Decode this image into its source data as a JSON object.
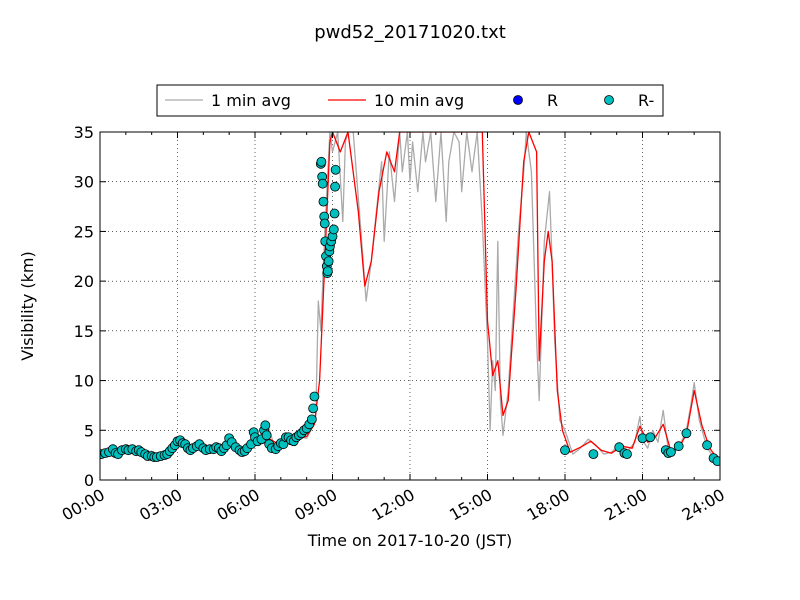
{
  "chart_data": {
    "type": "line",
    "title": "pwd52_20171020.txt",
    "xlabel": "Time on 2017-10-20 (JST)",
    "ylabel": "Visibility (km)",
    "xlim": [
      0,
      24
    ],
    "ylim": [
      0,
      35
    ],
    "x_ticks": [
      {
        "value": 0,
        "label": "00:00"
      },
      {
        "value": 3,
        "label": "03:00"
      },
      {
        "value": 6,
        "label": "06:00"
      },
      {
        "value": 9,
        "label": "09:00"
      },
      {
        "value": 12,
        "label": "12:00"
      },
      {
        "value": 15,
        "label": "15:00"
      },
      {
        "value": 18,
        "label": "18:00"
      },
      {
        "value": 21,
        "label": "21:00"
      },
      {
        "value": 24,
        "label": "24:00"
      }
    ],
    "y_ticks": [
      0,
      5,
      10,
      15,
      20,
      25,
      30,
      35
    ],
    "grid": true,
    "legend": {
      "placement": "top-center, above plot",
      "entries": [
        {
          "label": "1 min avg",
          "style": "line",
          "color": "#aaaaaa"
        },
        {
          "label": "10 min avg",
          "style": "line",
          "color": "#ff0000"
        },
        {
          "label": "R",
          "style": "marker",
          "color": "#0000ff"
        },
        {
          "label": "R-",
          "style": "marker",
          "color": "#00bfbf"
        }
      ]
    },
    "series": [
      {
        "name": "1 min avg",
        "color": "#aaaaaa",
        "points": [
          [
            0,
            2.6
          ],
          [
            0.4,
            2.9
          ],
          [
            0.8,
            2.6
          ],
          [
            1.2,
            3.1
          ],
          [
            1.6,
            2.8
          ],
          [
            2.0,
            2.9
          ],
          [
            2.4,
            2.4
          ],
          [
            2.8,
            2.5
          ],
          [
            3.0,
            3.8
          ],
          [
            3.3,
            3.5
          ],
          [
            3.6,
            3.2
          ],
          [
            4.0,
            3.4
          ],
          [
            4.4,
            3.2
          ],
          [
            4.8,
            3.3
          ],
          [
            5.0,
            4.0
          ],
          [
            5.4,
            3.5
          ],
          [
            5.7,
            2.9
          ],
          [
            6.0,
            4.6
          ],
          [
            6.3,
            4.0
          ],
          [
            6.5,
            5.5
          ],
          [
            6.8,
            3.0
          ],
          [
            7.2,
            3.5
          ],
          [
            7.6,
            4.4
          ],
          [
            8.0,
            4.2
          ],
          [
            8.2,
            5.2
          ],
          [
            8.35,
            6.0
          ],
          [
            8.45,
            18.0
          ],
          [
            8.55,
            15.0
          ],
          [
            8.65,
            22.0
          ],
          [
            8.8,
            30.0
          ],
          [
            8.9,
            35
          ],
          [
            9.0,
            33
          ],
          [
            9.2,
            35
          ],
          [
            9.4,
            26
          ],
          [
            9.5,
            34
          ],
          [
            9.6,
            35
          ],
          [
            9.8,
            35
          ],
          [
            10.1,
            25
          ],
          [
            10.3,
            18
          ],
          [
            10.5,
            22
          ],
          [
            10.7,
            27
          ],
          [
            10.9,
            32
          ],
          [
            11.0,
            24
          ],
          [
            11.2,
            33
          ],
          [
            11.4,
            28
          ],
          [
            11.6,
            35
          ],
          [
            11.7,
            31
          ],
          [
            11.9,
            35
          ],
          [
            12.0,
            30
          ],
          [
            12.1,
            34
          ],
          [
            12.3,
            29
          ],
          [
            12.5,
            35
          ],
          [
            12.6,
            32
          ],
          [
            12.8,
            35
          ],
          [
            13.0,
            28
          ],
          [
            13.2,
            35
          ],
          [
            13.4,
            26
          ],
          [
            13.5,
            32
          ],
          [
            13.7,
            35
          ],
          [
            13.9,
            34
          ],
          [
            14.0,
            29
          ],
          [
            14.2,
            35
          ],
          [
            14.4,
            31
          ],
          [
            14.6,
            35
          ],
          [
            14.8,
            26
          ],
          [
            15.0,
            14
          ],
          [
            15.1,
            5
          ],
          [
            15.2,
            12
          ],
          [
            15.3,
            9
          ],
          [
            15.4,
            24
          ],
          [
            15.5,
            8
          ],
          [
            15.6,
            4.5
          ],
          [
            15.8,
            9
          ],
          [
            16.0,
            17
          ],
          [
            16.2,
            25
          ],
          [
            16.4,
            31
          ],
          [
            16.5,
            35
          ],
          [
            16.7,
            31
          ],
          [
            16.9,
            14
          ],
          [
            17.0,
            8
          ],
          [
            17.1,
            16
          ],
          [
            17.2,
            24
          ],
          [
            17.4,
            29
          ],
          [
            17.5,
            22
          ],
          [
            17.6,
            14
          ],
          [
            17.8,
            6
          ],
          [
            18.0,
            5.0
          ],
          [
            18.3,
            2.6
          ],
          [
            18.6,
            3.2
          ],
          [
            18.9,
            4.1
          ],
          [
            19.2,
            3.5
          ],
          [
            19.5,
            2.6
          ],
          [
            19.8,
            2.8
          ],
          [
            20.1,
            3.6
          ],
          [
            20.4,
            2.8
          ],
          [
            20.7,
            3.8
          ],
          [
            20.9,
            6.4
          ],
          [
            21.0,
            4.0
          ],
          [
            21.2,
            3.2
          ],
          [
            21.4,
            5.0
          ],
          [
            21.6,
            3.8
          ],
          [
            21.8,
            7.0
          ],
          [
            22.0,
            3.0
          ],
          [
            22.2,
            2.6
          ],
          [
            22.5,
            3.8
          ],
          [
            22.7,
            5.0
          ],
          [
            22.9,
            8.0
          ],
          [
            23.0,
            9.8
          ],
          [
            23.2,
            6.0
          ],
          [
            23.5,
            3.2
          ],
          [
            23.8,
            2.2
          ],
          [
            24.0,
            1.8
          ]
        ]
      },
      {
        "name": "10 min avg",
        "color": "#ff0000",
        "points": [
          [
            0,
            2.6
          ],
          [
            0.5,
            2.8
          ],
          [
            1.0,
            2.7
          ],
          [
            1.5,
            2.9
          ],
          [
            2.0,
            2.7
          ],
          [
            2.5,
            2.4
          ],
          [
            3.0,
            3.6
          ],
          [
            3.5,
            3.3
          ],
          [
            4.0,
            3.3
          ],
          [
            4.5,
            3.2
          ],
          [
            5.0,
            3.7
          ],
          [
            5.5,
            3.2
          ],
          [
            6.0,
            4.1
          ],
          [
            6.5,
            4.2
          ],
          [
            7.0,
            3.5
          ],
          [
            7.5,
            4.0
          ],
          [
            8.0,
            4.4
          ],
          [
            8.3,
            5.6
          ],
          [
            8.5,
            10
          ],
          [
            8.7,
            22
          ],
          [
            8.9,
            34
          ],
          [
            9.0,
            35
          ],
          [
            9.3,
            33
          ],
          [
            9.6,
            35
          ],
          [
            10.0,
            27
          ],
          [
            10.25,
            19.5
          ],
          [
            10.5,
            22
          ],
          [
            10.8,
            29
          ],
          [
            11.1,
            33
          ],
          [
            11.4,
            31
          ],
          [
            11.6,
            35
          ],
          [
            12.0,
            35
          ],
          [
            14.8,
            35
          ],
          [
            15.0,
            16
          ],
          [
            15.2,
            10.5
          ],
          [
            15.4,
            12
          ],
          [
            15.6,
            6.5
          ],
          [
            15.8,
            8
          ],
          [
            16.1,
            19
          ],
          [
            16.4,
            32
          ],
          [
            16.6,
            35
          ],
          [
            16.9,
            33
          ],
          [
            17.0,
            12
          ],
          [
            17.2,
            22
          ],
          [
            17.35,
            25
          ],
          [
            17.5,
            22
          ],
          [
            17.7,
            9
          ],
          [
            17.9,
            5
          ],
          [
            18.2,
            2.8
          ],
          [
            18.6,
            3.3
          ],
          [
            19.0,
            3.9
          ],
          [
            19.4,
            3.0
          ],
          [
            19.8,
            2.7
          ],
          [
            20.2,
            3.4
          ],
          [
            20.6,
            3.2
          ],
          [
            20.9,
            5.4
          ],
          [
            21.2,
            3.8
          ],
          [
            21.5,
            4.3
          ],
          [
            21.8,
            5.6
          ],
          [
            22.1,
            2.9
          ],
          [
            22.4,
            3.2
          ],
          [
            22.7,
            4.6
          ],
          [
            23.0,
            9.0
          ],
          [
            23.3,
            5.5
          ],
          [
            23.6,
            3.2
          ],
          [
            24.0,
            1.8
          ]
        ]
      },
      {
        "name": "R",
        "color": "#0000ff",
        "marker": "circle",
        "points": []
      },
      {
        "name": "R-",
        "color": "#00bfbf",
        "marker": "circle",
        "points": [
          [
            0.05,
            2.6
          ],
          [
            0.2,
            2.7
          ],
          [
            0.35,
            2.8
          ],
          [
            0.5,
            3.1
          ],
          [
            0.6,
            2.7
          ],
          [
            0.7,
            2.6
          ],
          [
            0.85,
            3.0
          ],
          [
            1.0,
            3.1
          ],
          [
            1.1,
            3.0
          ],
          [
            1.25,
            3.1
          ],
          [
            1.4,
            2.9
          ],
          [
            1.5,
            3.0
          ],
          [
            1.6,
            2.8
          ],
          [
            1.75,
            2.6
          ],
          [
            1.85,
            2.4
          ],
          [
            2.0,
            2.4
          ],
          [
            2.1,
            2.3
          ],
          [
            2.2,
            2.3
          ],
          [
            2.35,
            2.4
          ],
          [
            2.5,
            2.5
          ],
          [
            2.6,
            2.6
          ],
          [
            2.7,
            2.9
          ],
          [
            2.8,
            3.2
          ],
          [
            2.9,
            3.5
          ],
          [
            3.0,
            3.9
          ],
          [
            3.1,
            4.0
          ],
          [
            3.2,
            3.7
          ],
          [
            3.3,
            3.6
          ],
          [
            3.4,
            3.2
          ],
          [
            3.5,
            3.0
          ],
          [
            3.6,
            3.2
          ],
          [
            3.75,
            3.4
          ],
          [
            3.85,
            3.6
          ],
          [
            4.0,
            3.2
          ],
          [
            4.1,
            3.0
          ],
          [
            4.25,
            3.1
          ],
          [
            4.4,
            3.1
          ],
          [
            4.5,
            3.3
          ],
          [
            4.6,
            3.2
          ],
          [
            4.7,
            2.9
          ],
          [
            4.8,
            3.2
          ],
          [
            4.9,
            3.5
          ],
          [
            5.0,
            4.2
          ],
          [
            5.1,
            3.8
          ],
          [
            5.25,
            3.3
          ],
          [
            5.4,
            3.0
          ],
          [
            5.5,
            2.8
          ],
          [
            5.6,
            2.9
          ],
          [
            5.7,
            3.2
          ],
          [
            5.85,
            3.6
          ],
          [
            5.95,
            4.8
          ],
          [
            6.0,
            4.3
          ],
          [
            6.1,
            3.9
          ],
          [
            6.25,
            4.1
          ],
          [
            6.35,
            5.0
          ],
          [
            6.4,
            5.5
          ],
          [
            6.45,
            4.5
          ],
          [
            6.55,
            3.6
          ],
          [
            6.65,
            3.2
          ],
          [
            6.8,
            3.1
          ],
          [
            6.9,
            3.4
          ],
          [
            7.0,
            3.7
          ],
          [
            7.1,
            3.6
          ],
          [
            7.2,
            4.3
          ],
          [
            7.3,
            4.3
          ],
          [
            7.4,
            4.0
          ],
          [
            7.5,
            3.9
          ],
          [
            7.6,
            4.3
          ],
          [
            7.7,
            4.5
          ],
          [
            7.8,
            4.7
          ],
          [
            7.9,
            5.0
          ],
          [
            8.0,
            5.2
          ],
          [
            8.1,
            5.6
          ],
          [
            8.2,
            6.1
          ],
          [
            8.25,
            7.2
          ],
          [
            8.3,
            8.4
          ],
          [
            8.55,
            31.8
          ],
          [
            8.57,
            32.0
          ],
          [
            8.6,
            30.5
          ],
          [
            8.62,
            29.8
          ],
          [
            8.65,
            28.0
          ],
          [
            8.68,
            26.5
          ],
          [
            8.7,
            25.8
          ],
          [
            8.72,
            24.0
          ],
          [
            8.75,
            22.5
          ],
          [
            8.78,
            21.5
          ],
          [
            8.8,
            20.8
          ],
          [
            8.82,
            21.0
          ],
          [
            8.85,
            22.0
          ],
          [
            8.88,
            23.0
          ],
          [
            8.9,
            23.5
          ],
          [
            8.95,
            24.0
          ],
          [
            9.0,
            24.5
          ],
          [
            9.05,
            25.2
          ],
          [
            9.08,
            26.8
          ],
          [
            9.1,
            29.5
          ],
          [
            9.12,
            31.2
          ],
          [
            18.0,
            3.0
          ],
          [
            19.1,
            2.6
          ],
          [
            20.1,
            3.3
          ],
          [
            20.3,
            2.7
          ],
          [
            20.4,
            2.6
          ],
          [
            21.0,
            4.2
          ],
          [
            21.3,
            4.3
          ],
          [
            21.9,
            3.0
          ],
          [
            22.0,
            2.7
          ],
          [
            22.1,
            2.8
          ],
          [
            22.4,
            3.4
          ],
          [
            22.7,
            4.7
          ],
          [
            23.5,
            3.5
          ],
          [
            23.75,
            2.2
          ],
          [
            23.9,
            1.9
          ]
        ]
      }
    ]
  }
}
